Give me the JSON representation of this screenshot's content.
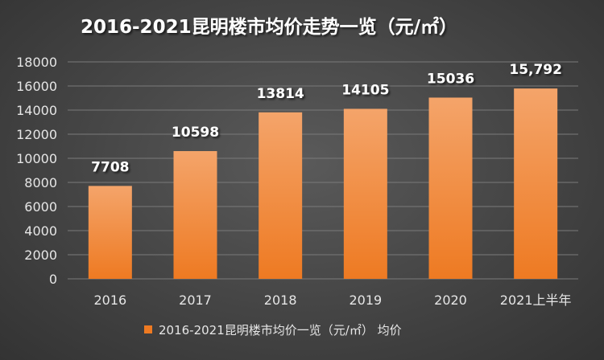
{
  "chart_data": {
    "type": "bar",
    "title": "2016-2021昆明楼市均价走势一览（元/㎡）",
    "categories": [
      "2016",
      "2017",
      "2018",
      "2019",
      "2020",
      "2021上半年"
    ],
    "series": [
      {
        "name": "2016-2021昆明楼市均价一览（元/㎡） 均价",
        "values": [
          7708,
          10598,
          13814,
          14105,
          15036,
          15792
        ],
        "data_labels": [
          "7708",
          "10598",
          "13814",
          "14105",
          "15036",
          "15,792"
        ]
      }
    ],
    "xlabel": "",
    "ylabel": "",
    "ylim": [
      0,
      18000
    ],
    "yticks": [
      0,
      2000,
      4000,
      6000,
      8000,
      10000,
      12000,
      14000,
      16000,
      18000
    ],
    "grid": true,
    "legend_position": "bottom",
    "colors": {
      "bar_top": "#f4a46a",
      "bar_bottom": "#ee7a22",
      "grid": "#7a7a7a",
      "background": "#444444"
    }
  }
}
